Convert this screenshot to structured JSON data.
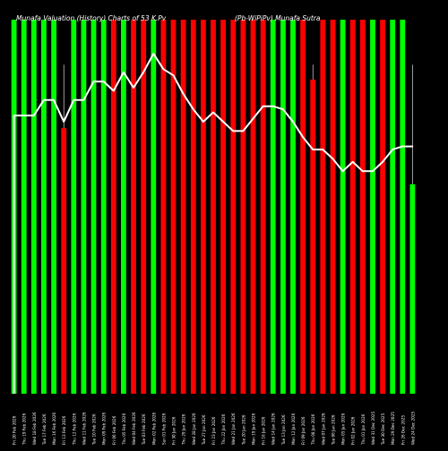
{
  "chart_data": {
    "type": "bar",
    "title": "Munafa Valuation (History) Charts of 53 K.Pv",
    "subtitle": "(Pb-WiPiPv) Munafa Sutra",
    "colors": {
      "green": "#00ff00",
      "red": "#ff0000",
      "line": "#ffffff",
      "background": "#000000"
    },
    "x_tick_labels": [
      "Fri 20 Feb 2026",
      "Thu 19 Feb 2026",
      "Wed 18 Feb 2026",
      "Tue 17 Feb 2026",
      "Mon 16 Feb 2026",
      "Fri 13 Feb 2026",
      "Thu 12 Feb 2026",
      "Wed 11 Feb 2026",
      "Tue 10 Feb 2026",
      "Mon 09 Feb 2026",
      "Fri 06 Feb 2026",
      "Thu 05 Feb 2026",
      "Wed 04 Feb 2026",
      "Tue 03 Feb 2026",
      "Mon 02 Feb 2026",
      "Sun 01 Feb 2026",
      "Fri 30 Jan 2026",
      "Thu 29 Jan 2026",
      "Wed 28 Jan 2026",
      "Tue 27 Jan 2026",
      "Fri 23 Jan 2026",
      "Thu 22 Jan 2026",
      "Wed 21 Jan 2026",
      "Tue 20 Jan 2026",
      "Mon 19 Jan 2026",
      "Fri 16 Jan 2026",
      "Wed 14 Jan 2026",
      "Tue 13 Jan 2026",
      "Mon 12 Jan 2026",
      "Fri 09 Jan 2026",
      "Thu 08 Jan 2026",
      "Wed 07 Jan 2026",
      "Tue 06 Jan 2026",
      "Mon 05 Jan 2026",
      "Fri 02 Jan 2026",
      "Thu 01 Jan 2026",
      "Wed 31 Dec 2025",
      "Tue 30 Dec 2025",
      "Mon 29 Dec 2025",
      "Fri 26 Dec 2025",
      "Wed 24 Dec 2025"
    ],
    "bar_colors": [
      "green",
      "green",
      "green",
      "green",
      "green",
      "red",
      "green",
      "green",
      "green",
      "green",
      "red",
      "green",
      "red",
      "red",
      "green",
      "red",
      "red",
      "red",
      "red",
      "red",
      "red",
      "red",
      "red",
      "red",
      "red",
      "red",
      "green",
      "green",
      "green",
      "red",
      "red",
      "red",
      "red",
      "green",
      "red",
      "red",
      "green",
      "red",
      "green",
      "green",
      "green"
    ],
    "bar_values": [
      100,
      100,
      100,
      100,
      100,
      71,
      100,
      100,
      100,
      100,
      100,
      100,
      100,
      100,
      100,
      100,
      100,
      100,
      100,
      100,
      100,
      100,
      100,
      100,
      100,
      100,
      100,
      100,
      100,
      100,
      84,
      100,
      100,
      100,
      100,
      100,
      100,
      100,
      100,
      100,
      56
    ],
    "line_values": [
      90,
      90,
      90,
      95,
      95,
      88,
      95,
      95,
      101,
      101,
      98,
      104,
      99,
      104,
      110,
      105,
      103,
      97,
      92,
      88,
      91,
      88,
      85,
      85,
      89,
      93,
      93,
      92,
      88,
      83,
      79,
      79,
      76,
      72,
      75,
      72,
      72,
      75,
      79,
      80,
      80
    ],
    "ylim": [
      0,
      100
    ],
    "line_ylim": [
      0,
      121
    ]
  }
}
